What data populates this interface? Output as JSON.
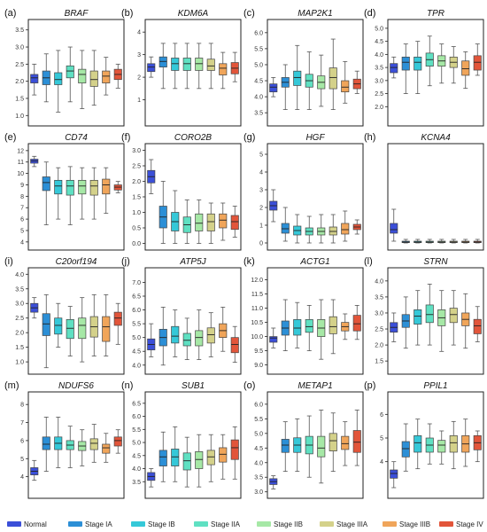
{
  "figure": {
    "colors": [
      "#3b4fd8",
      "#2c8fd6",
      "#35c8d8",
      "#5fe0c2",
      "#a6e8a6",
      "#d4d18a",
      "#f0a55a",
      "#e2553a"
    ],
    "legend": [
      "Normal",
      "Stage IA",
      "Stage IB",
      "Stage IIA",
      "Stage IIB",
      "Stage IIIA",
      "Stage IIIB",
      "Stage IV"
    ]
  },
  "chart_data": [
    {
      "type": "box",
      "panel": "(a)",
      "title": "BRAF",
      "yticks": [
        1.0,
        1.5,
        2.0,
        2.5,
        3.0,
        3.5
      ],
      "ylim": [
        0.8,
        3.7
      ],
      "boxes": [
        [
          1.6,
          1.95,
          2.1,
          2.2,
          2.5
        ],
        [
          1.4,
          1.9,
          2.1,
          2.3,
          2.8
        ],
        [
          1.1,
          1.9,
          2.05,
          2.25,
          2.9
        ],
        [
          1.4,
          2.1,
          2.3,
          2.45,
          3.0
        ],
        [
          1.2,
          1.95,
          2.2,
          2.35,
          2.9
        ],
        [
          1.3,
          1.85,
          2.05,
          2.3,
          2.9
        ],
        [
          1.6,
          1.95,
          2.15,
          2.3,
          2.7
        ],
        [
          1.8,
          2.05,
          2.2,
          2.35,
          2.5
        ]
      ]
    },
    {
      "type": "box",
      "panel": "(b)",
      "title": "KDM6A",
      "yticks": [
        1,
        2,
        3,
        4
      ],
      "ylim": [
        0,
        4.4
      ],
      "boxes": [
        [
          2.0,
          2.25,
          2.45,
          2.6,
          2.9
        ],
        [
          1.5,
          2.45,
          2.7,
          2.9,
          3.5
        ],
        [
          1.5,
          2.3,
          2.6,
          2.85,
          3.5
        ],
        [
          1.5,
          2.3,
          2.6,
          2.85,
          3.5
        ],
        [
          1.5,
          2.3,
          2.6,
          2.85,
          3.5
        ],
        [
          1.5,
          2.3,
          2.5,
          2.8,
          3.5
        ],
        [
          1.5,
          2.1,
          2.4,
          2.6,
          3.1
        ],
        [
          1.8,
          2.15,
          2.4,
          2.65,
          3.1
        ]
      ]
    },
    {
      "type": "box",
      "panel": "(c)",
      "title": "MAP2K1",
      "yticks": [
        3.5,
        4.0,
        4.5,
        5.0,
        5.5,
        6.0
      ],
      "ylim": [
        3.2,
        6.3
      ],
      "boxes": [
        [
          4.0,
          4.15,
          4.3,
          4.4,
          4.6
        ],
        [
          3.6,
          4.3,
          4.45,
          4.6,
          5.0
        ],
        [
          3.6,
          4.35,
          4.6,
          4.8,
          5.6
        ],
        [
          3.6,
          4.3,
          4.5,
          4.7,
          5.4
        ],
        [
          3.7,
          4.25,
          4.45,
          4.65,
          5.3
        ],
        [
          3.6,
          4.25,
          4.6,
          4.9,
          5.8
        ],
        [
          3.8,
          4.15,
          4.3,
          4.5,
          5.1
        ],
        [
          4.1,
          4.25,
          4.4,
          4.55,
          4.8
        ]
      ]
    },
    {
      "type": "box",
      "panel": "(d)",
      "title": "TPR",
      "yticks": [
        2.0,
        2.5,
        3.0,
        3.5,
        4.0,
        4.5,
        5.0
      ],
      "ylim": [
        1.4,
        5.2
      ],
      "boxes": [
        [
          3.1,
          3.3,
          3.5,
          3.65,
          3.9
        ],
        [
          2.5,
          3.4,
          3.7,
          3.9,
          4.4
        ],
        [
          2.5,
          3.4,
          3.7,
          3.9,
          4.5
        ],
        [
          2.8,
          3.55,
          3.8,
          4.05,
          4.7
        ],
        [
          2.9,
          3.55,
          3.75,
          3.95,
          4.4
        ],
        [
          2.9,
          3.5,
          3.7,
          3.9,
          4.3
        ],
        [
          2.7,
          3.2,
          3.45,
          3.75,
          4.1
        ],
        [
          3.2,
          3.4,
          3.7,
          3.95,
          4.4
        ]
      ]
    },
    {
      "type": "box",
      "panel": "(e)",
      "title": "CD74",
      "yticks": [
        4,
        5,
        6,
        7,
        8,
        9,
        10,
        11,
        12
      ],
      "ylim": [
        3.6,
        12.3
      ],
      "boxes": [
        [
          10.6,
          10.9,
          11.1,
          11.25,
          11.5
        ],
        [
          5.5,
          8.5,
          9.2,
          9.7,
          11.0
        ],
        [
          6.0,
          8.2,
          8.9,
          9.4,
          10.5
        ],
        [
          5.5,
          8.1,
          8.9,
          9.4,
          10.6
        ],
        [
          6.0,
          8.2,
          8.9,
          9.4,
          10.5
        ],
        [
          6.0,
          8.1,
          8.9,
          9.4,
          10.5
        ],
        [
          6.5,
          8.2,
          9.0,
          9.5,
          10.5
        ],
        [
          8.3,
          8.55,
          8.8,
          9.0,
          9.3
        ]
      ]
    },
    {
      "type": "box",
      "panel": "(f)",
      "title": "CORO2B",
      "yticks": [
        0.0,
        0.5,
        1.0,
        1.5,
        2.0,
        2.5,
        3.0
      ],
      "ylim": [
        -0.1,
        3.1
      ],
      "boxes": [
        [
          1.6,
          1.95,
          2.15,
          2.35,
          2.7
        ],
        [
          0.0,
          0.5,
          0.85,
          1.2,
          2.0
        ],
        [
          0.0,
          0.4,
          0.7,
          1.0,
          1.7
        ],
        [
          0.0,
          0.35,
          0.6,
          0.85,
          1.4
        ],
        [
          0.0,
          0.4,
          0.65,
          0.95,
          1.4
        ],
        [
          0.0,
          0.4,
          0.7,
          0.95,
          1.3
        ],
        [
          0.1,
          0.5,
          0.75,
          0.95,
          1.3
        ],
        [
          0.2,
          0.45,
          0.7,
          0.9,
          1.2
        ]
      ]
    },
    {
      "type": "box",
      "panel": "(g)",
      "title": "HGF",
      "yticks": [
        0,
        1,
        2,
        3,
        4,
        5
      ],
      "ylim": [
        -0.2,
        5.4
      ],
      "boxes": [
        [
          1.2,
          1.85,
          2.1,
          2.35,
          3.0
        ],
        [
          0.1,
          0.55,
          0.8,
          1.1,
          2.0
        ],
        [
          0.0,
          0.45,
          0.7,
          0.95,
          1.6
        ],
        [
          0.0,
          0.45,
          0.65,
          0.85,
          1.5
        ],
        [
          0.0,
          0.45,
          0.65,
          0.85,
          1.6
        ],
        [
          0.0,
          0.45,
          0.65,
          0.9,
          1.6
        ],
        [
          0.1,
          0.5,
          0.75,
          1.1,
          1.8
        ],
        [
          0.5,
          0.75,
          0.9,
          1.05,
          1.3
        ]
      ]
    },
    {
      "type": "box",
      "panel": "(h)",
      "title": "KCNA4",
      "yticks": [],
      "ylim": [
        -0.2,
        5.4
      ],
      "boxes": [
        [
          0.1,
          0.55,
          0.75,
          1.1,
          1.9
        ],
        [
          0.0,
          0.02,
          0.05,
          0.1,
          0.2
        ],
        [
          0.0,
          0.02,
          0.05,
          0.1,
          0.2
        ],
        [
          0.0,
          0.02,
          0.05,
          0.1,
          0.2
        ],
        [
          0.0,
          0.02,
          0.05,
          0.1,
          0.2
        ],
        [
          0.0,
          0.02,
          0.05,
          0.1,
          0.2
        ],
        [
          0.0,
          0.02,
          0.05,
          0.1,
          0.2
        ],
        [
          0.0,
          0.02,
          0.05,
          0.1,
          0.2
        ]
      ]
    },
    {
      "type": "box",
      "panel": "(i)",
      "title": "C20orf194",
      "yticks": [
        1.0,
        1.5,
        2.0,
        2.5,
        3.0,
        3.5,
        4.0
      ],
      "ylim": [
        0.7,
        4.1
      ],
      "boxes": [
        [
          2.5,
          2.7,
          2.85,
          3.0,
          3.2
        ],
        [
          0.8,
          1.9,
          2.3,
          2.65,
          3.3
        ],
        [
          1.5,
          1.95,
          2.25,
          2.5,
          3.0
        ],
        [
          1.2,
          1.8,
          2.15,
          2.45,
          2.9
        ],
        [
          1.0,
          1.8,
          2.25,
          2.5,
          3.2
        ],
        [
          1.2,
          1.85,
          2.2,
          2.55,
          3.3
        ],
        [
          1.2,
          1.7,
          2.2,
          2.55,
          3.3
        ],
        [
          1.6,
          2.25,
          2.5,
          2.7,
          3.0
        ]
      ]
    },
    {
      "type": "box",
      "panel": "(j)",
      "title": "ATP5J",
      "yticks": [
        4.0,
        4.5,
        5.0,
        5.5,
        6.0,
        6.5,
        7.0
      ],
      "ylim": [
        3.8,
        7.4
      ],
      "boxes": [
        [
          4.3,
          4.55,
          4.75,
          4.95,
          5.5
        ],
        [
          4.0,
          4.7,
          5.0,
          5.3,
          6.1
        ],
        [
          4.3,
          4.8,
          5.05,
          5.4,
          6.0
        ],
        [
          4.2,
          4.7,
          4.9,
          5.15,
          5.7
        ],
        [
          4.2,
          4.7,
          5.0,
          5.25,
          6.0
        ],
        [
          4.3,
          4.8,
          5.1,
          5.35,
          5.9
        ],
        [
          4.5,
          5.0,
          5.25,
          5.5,
          6.1
        ],
        [
          4.1,
          4.45,
          4.75,
          5.0,
          5.4
        ]
      ]
    },
    {
      "type": "box",
      "panel": "(k)",
      "title": "ACTG1",
      "yticks": [
        9.0,
        9.5,
        10.0,
        10.5,
        11.0,
        11.5,
        12.0
      ],
      "ylim": [
        8.8,
        12.3
      ],
      "boxes": [
        [
          9.6,
          9.8,
          9.95,
          10.0,
          10.3
        ],
        [
          9.5,
          10.05,
          10.3,
          10.55,
          11.3
        ],
        [
          9.6,
          10.05,
          10.3,
          10.6,
          11.2
        ],
        [
          9.5,
          10.15,
          10.35,
          10.6,
          11.1
        ],
        [
          9.2,
          10.0,
          10.3,
          10.6,
          11.3
        ],
        [
          9.4,
          10.1,
          10.35,
          10.7,
          11.3
        ],
        [
          9.9,
          10.2,
          10.35,
          10.5,
          10.8
        ],
        [
          9.9,
          10.2,
          10.45,
          10.75,
          11.1
        ]
      ]
    },
    {
      "type": "box",
      "panel": "(l)",
      "title": "STRN",
      "yticks": [
        1.5,
        2.0,
        2.5,
        3.0,
        3.5,
        4.0
      ],
      "ylim": [
        1.2,
        4.3
      ],
      "boxes": [
        [
          2.1,
          2.4,
          2.55,
          2.7,
          3.0
        ],
        [
          1.9,
          2.55,
          2.75,
          2.95,
          3.5
        ],
        [
          2.0,
          2.65,
          2.9,
          3.1,
          3.7
        ],
        [
          2.0,
          2.7,
          2.95,
          3.25,
          3.9
        ],
        [
          1.8,
          2.6,
          2.85,
          3.1,
          3.7
        ],
        [
          2.0,
          2.7,
          2.95,
          3.15,
          3.7
        ],
        [
          1.9,
          2.6,
          2.8,
          3.0,
          3.6
        ],
        [
          2.1,
          2.35,
          2.6,
          2.8,
          3.2
        ]
      ]
    },
    {
      "type": "box",
      "panel": "(m)",
      "title": "NDUFS6",
      "yticks": [
        4,
        5,
        6,
        7,
        8
      ],
      "ylim": [
        3.0,
        8.5
      ],
      "boxes": [
        [
          3.8,
          4.1,
          4.3,
          4.5,
          4.9
        ],
        [
          4.3,
          5.5,
          5.8,
          6.2,
          7.3
        ],
        [
          4.5,
          5.5,
          5.85,
          6.2,
          7.3
        ],
        [
          4.5,
          5.5,
          5.75,
          6.0,
          6.8
        ],
        [
          4.6,
          5.45,
          5.7,
          5.95,
          6.6
        ],
        [
          4.8,
          5.5,
          5.85,
          6.1,
          6.9
        ],
        [
          4.8,
          5.3,
          5.6,
          5.8,
          6.4
        ],
        [
          5.3,
          5.7,
          6.0,
          6.2,
          6.6
        ]
      ]
    },
    {
      "type": "box",
      "panel": "(n)",
      "title": "SUB1",
      "yticks": [
        3.5,
        4.0,
        4.5,
        5.0,
        5.5,
        6.0,
        6.5
      ],
      "ylim": [
        3.0,
        6.8
      ],
      "boxes": [
        [
          3.3,
          3.55,
          3.7,
          3.85,
          4.0
        ],
        [
          3.5,
          4.1,
          4.45,
          4.7,
          5.4
        ],
        [
          3.5,
          4.1,
          4.45,
          4.75,
          5.6
        ],
        [
          3.3,
          3.95,
          4.3,
          4.6,
          5.2
        ],
        [
          3.3,
          4.0,
          4.35,
          4.65,
          5.3
        ],
        [
          3.5,
          4.15,
          4.45,
          4.7,
          5.3
        ],
        [
          3.6,
          4.25,
          4.55,
          4.8,
          5.3
        ],
        [
          3.6,
          4.35,
          4.8,
          5.1,
          5.6
        ]
      ]
    },
    {
      "type": "box",
      "panel": "(o)",
      "title": "METAP1",
      "yticks": [
        3.0,
        3.5,
        4.0,
        4.5,
        5.0,
        5.5,
        6.0
      ],
      "ylim": [
        2.9,
        6.3
      ],
      "boxes": [
        [
          3.1,
          3.25,
          3.35,
          3.45,
          3.55
        ],
        [
          3.7,
          4.35,
          4.6,
          4.8,
          5.4
        ],
        [
          3.7,
          4.35,
          4.6,
          4.85,
          5.5
        ],
        [
          3.5,
          4.3,
          4.6,
          4.9,
          5.6
        ],
        [
          3.3,
          4.2,
          4.5,
          4.9,
          5.8
        ],
        [
          3.7,
          4.4,
          4.75,
          5.0,
          5.7
        ],
        [
          3.9,
          4.45,
          4.65,
          4.9,
          5.4
        ],
        [
          3.9,
          4.35,
          4.7,
          5.1,
          5.8
        ]
      ]
    },
    {
      "type": "box",
      "panel": "(p)",
      "title": "PPIL1",
      "yticks": [
        4,
        5,
        6
      ],
      "ylim": [
        2.6,
        6.8
      ],
      "boxes": [
        [
          2.9,
          3.3,
          3.5,
          3.65,
          4.0
        ],
        [
          3.6,
          4.2,
          4.55,
          4.85,
          5.6
        ],
        [
          3.7,
          4.4,
          4.8,
          5.1,
          5.8
        ],
        [
          3.9,
          4.4,
          4.7,
          5.0,
          5.6
        ],
        [
          3.9,
          4.4,
          4.7,
          4.9,
          5.3
        ],
        [
          3.7,
          4.4,
          4.8,
          5.1,
          5.7
        ],
        [
          3.8,
          4.4,
          4.75,
          5.1,
          5.8
        ],
        [
          4.0,
          4.5,
          4.8,
          5.1,
          5.3
        ]
      ]
    }
  ]
}
